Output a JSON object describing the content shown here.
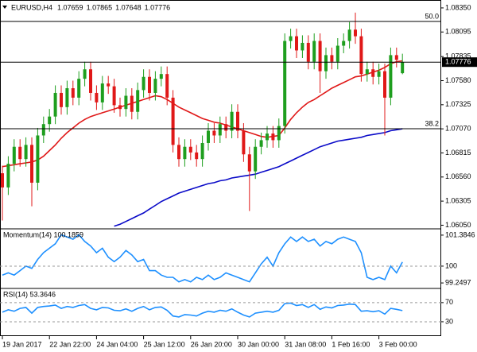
{
  "chart_data": [
    {
      "type": "candlestick",
      "title": "EURUSD,H4",
      "ohlc_last": {
        "open": 1.07659,
        "high": 1.07865,
        "low": 1.07648,
        "close": 1.07776
      },
      "categories": [
        "19 Jan 2017",
        null,
        null,
        null,
        null,
        null,
        null,
        null,
        "22 Jan 22:00",
        null,
        null,
        null,
        null,
        null,
        null,
        null,
        "24 Jan 04:00",
        null,
        null,
        null,
        null,
        null,
        null,
        null,
        "25 Jan 12:00",
        null,
        null,
        null,
        null,
        null,
        null,
        null,
        "26 Jan 20:00",
        null,
        null,
        null,
        null,
        null,
        null,
        null,
        "30 Jan 00:00",
        null,
        null,
        null,
        null,
        null,
        null,
        null,
        "31 Jan 08:00",
        null,
        null,
        null,
        null,
        null,
        null,
        null,
        "1 Feb 16:00",
        null,
        null,
        null,
        null,
        null,
        null,
        null,
        "3 Feb 00:00",
        null,
        null,
        null,
        null
      ],
      "open": [
        1.066,
        1.0645,
        1.067,
        1.0688,
        1.0675,
        1.069,
        1.065,
        1.07,
        1.0712,
        1.072,
        1.0745,
        1.073,
        1.075,
        1.074,
        1.076,
        1.077,
        1.0745,
        1.0735,
        1.0755,
        1.0752,
        1.0732,
        1.0728,
        1.0742,
        1.0725,
        1.0748,
        1.0762,
        1.0745,
        1.076,
        1.0765,
        1.074,
        1.069,
        1.0675,
        1.0688,
        1.0682,
        1.0675,
        1.0692,
        1.0705,
        1.07,
        1.0712,
        1.0705,
        1.0725,
        1.0705,
        1.068,
        1.0662,
        1.0688,
        1.0695,
        1.0702,
        1.0695,
        1.071,
        1.08,
        1.0805,
        1.079,
        1.0798,
        1.0778,
        1.08,
        1.0768,
        1.0785,
        1.0778,
        1.0795,
        1.08,
        1.0812,
        1.0805,
        1.0765,
        1.077,
        1.0762,
        1.0768,
        1.074,
        1.0785,
        1.07659
      ],
      "high": [
        1.0668,
        1.0678,
        1.0696,
        1.0696,
        1.0698,
        1.0698,
        1.0708,
        1.072,
        1.0728,
        1.0753,
        1.0753,
        1.0758,
        1.0758,
        1.0768,
        1.0778,
        1.0778,
        1.0753,
        1.0763,
        1.0763,
        1.076,
        1.074,
        1.075,
        1.075,
        1.0756,
        1.077,
        1.077,
        1.0768,
        1.0773,
        1.0773,
        1.0748,
        1.0698,
        1.0696,
        1.0696,
        1.069,
        1.07,
        1.0713,
        1.0713,
        1.072,
        1.072,
        1.0733,
        1.0733,
        1.0713,
        1.0688,
        1.0696,
        1.0703,
        1.071,
        1.071,
        1.0718,
        1.0808,
        1.0813,
        1.0813,
        1.0806,
        1.0806,
        1.0808,
        1.0808,
        1.0793,
        1.0793,
        1.0803,
        1.0808,
        1.082,
        1.083,
        1.0813,
        1.0778,
        1.0778,
        1.0776,
        1.0776,
        1.0793,
        1.0793,
        1.07865
      ],
      "low": [
        1.061,
        1.0637,
        1.0662,
        1.0667,
        1.0667,
        1.0625,
        1.0642,
        1.0692,
        1.0704,
        1.0712,
        1.0722,
        1.0722,
        1.0732,
        1.0732,
        1.0752,
        1.0737,
        1.0727,
        1.0727,
        1.0744,
        1.0724,
        1.072,
        1.072,
        1.0717,
        1.0717,
        1.074,
        1.0737,
        1.0737,
        1.0752,
        1.0732,
        1.0682,
        1.0667,
        1.0667,
        1.0674,
        1.0667,
        1.0667,
        1.0684,
        1.0692,
        1.0692,
        1.0697,
        1.0697,
        1.0697,
        1.0672,
        1.062,
        1.0654,
        1.068,
        1.0687,
        1.0687,
        1.0687,
        1.0702,
        1.0792,
        1.0782,
        1.0782,
        1.077,
        1.077,
        1.0745,
        1.076,
        1.077,
        1.077,
        1.0787,
        1.0792,
        1.0797,
        1.0757,
        1.0757,
        1.0754,
        1.0754,
        1.07,
        1.0732,
        1.0772,
        1.07648
      ],
      "close": [
        1.0645,
        1.067,
        1.0688,
        1.0675,
        1.069,
        1.065,
        1.07,
        1.0712,
        1.072,
        1.0745,
        1.073,
        1.075,
        1.074,
        1.076,
        1.077,
        1.0745,
        1.0735,
        1.0755,
        1.0752,
        1.0732,
        1.0728,
        1.0742,
        1.0725,
        1.0748,
        1.0762,
        1.0745,
        1.076,
        1.0765,
        1.074,
        1.069,
        1.0675,
        1.0688,
        1.0682,
        1.0675,
        1.0692,
        1.0705,
        1.07,
        1.0712,
        1.0705,
        1.0725,
        1.0705,
        1.068,
        1.0662,
        1.0688,
        1.0695,
        1.0702,
        1.0695,
        1.071,
        1.08,
        1.0805,
        1.079,
        1.0798,
        1.0778,
        1.08,
        1.0768,
        1.0785,
        1.0778,
        1.0795,
        1.08,
        1.0812,
        1.0805,
        1.0765,
        1.077,
        1.0762,
        1.0768,
        1.074,
        1.0785,
        1.078,
        1.07776
      ],
      "up_color": "#1e9e1e",
      "down_color": "#e01818",
      "overlays": [
        {
          "color": "#e01818",
          "values": [
            1.0667,
            1.0668,
            1.0669,
            1.067,
            1.0671,
            1.0672,
            1.0674,
            1.0678,
            1.0684,
            1.069,
            1.0697,
            1.0703,
            1.0708,
            1.0713,
            1.0717,
            1.072,
            1.0722,
            1.0724,
            1.0726,
            1.0728,
            1.073,
            1.0732,
            1.0734,
            1.0736,
            1.0738,
            1.074,
            1.0742,
            1.0741,
            1.0738,
            1.0734,
            1.073,
            1.0727,
            1.0724,
            1.0721,
            1.0718,
            1.0716,
            1.0714,
            1.0713,
            1.0711,
            1.0709,
            1.0707,
            1.0705,
            1.0703,
            1.0701,
            1.0699,
            1.0698,
            1.0699,
            1.07,
            1.0708,
            1.0717,
            1.0724,
            1.073,
            1.0735,
            1.0738,
            1.0742,
            1.0746,
            1.075,
            1.0753,
            1.0756,
            1.0759,
            1.0762,
            1.0763,
            1.0765,
            1.0767,
            1.0769,
            1.0772,
            1.0776,
            1.0778,
            1.0779
          ]
        },
        {
          "color": "#0a0ac8",
          "values": [
            null,
            null,
            null,
            null,
            null,
            null,
            null,
            null,
            null,
            null,
            null,
            null,
            null,
            null,
            null,
            null,
            null,
            null,
            null,
            1.0604,
            1.0606,
            1.0609,
            1.0612,
            1.0615,
            1.0618,
            1.0622,
            1.0626,
            1.063,
            1.0633,
            1.0636,
            1.0639,
            1.0641,
            1.0643,
            1.0645,
            1.0647,
            1.0649,
            1.065,
            1.0652,
            1.0653,
            1.0655,
            1.0656,
            1.0657,
            1.0658,
            1.0659,
            1.0661,
            1.0663,
            1.0665,
            1.0667,
            1.067,
            1.0673,
            1.0676,
            1.0679,
            1.0682,
            1.0685,
            1.0688,
            1.069,
            1.0692,
            1.0694,
            1.0695,
            1.0696,
            1.0697,
            1.0698,
            1.07,
            1.0701,
            1.0702,
            1.0703,
            1.0705,
            1.0706,
            1.0707
          ]
        }
      ],
      "levels": [
        {
          "label": "50.0",
          "value": 1.08207
        },
        {
          "label": "38.2",
          "value": 1.07071
        }
      ],
      "ylim": [
        1.0602,
        1.084
      ],
      "yticks": [
        {
          "value": 1.0835,
          "label": "1.08350"
        },
        1.08095,
        1.07835,
        {
          "value": 1.0758,
          "label": "1.07580"
        },
        1.07325,
        {
          "value": 1.0707,
          "label": "1.07070"
        },
        1.06815,
        {
          "value": 1.0656,
          "label": "1.06560"
        },
        1.06305,
        {
          "value": 1.0605,
          "label": "1.06050"
        }
      ]
    },
    {
      "type": "line",
      "title": "Momentum(14) 100.1859",
      "color": "#1e90ff",
      "values": [
        99.6,
        99.7,
        99.6,
        99.8,
        100.0,
        99.9,
        100.3,
        100.6,
        100.8,
        101.0,
        101.4,
        101.3,
        101.2,
        101.4,
        101.1,
        100.9,
        100.6,
        100.8,
        100.4,
        100.2,
        100.4,
        100.7,
        100.5,
        100.2,
        100.3,
        99.8,
        99.8,
        99.6,
        99.5,
        99.5,
        99.3,
        99.4,
        99.3,
        99.5,
        99.4,
        99.6,
        99.4,
        99.5,
        99.7,
        99.6,
        99.5,
        99.4,
        99.3,
        99.7,
        100.1,
        100.4,
        100.0,
        100.6,
        101.0,
        101.3,
        101.1,
        101.3,
        101.1,
        101.2,
        100.9,
        101.1,
        101.0,
        101.2,
        101.3,
        101.2,
        101.1,
        100.6,
        99.5,
        99.4,
        99.5,
        99.4,
        100.0,
        99.7,
        100.1859
      ],
      "reference_lines": [
        100
      ],
      "ylim": [
        99.04,
        101.63
      ],
      "yticks": [
        101.3846,
        100,
        99.2497
      ]
    },
    {
      "type": "line",
      "title": "RSI(14) 53.3646",
      "color": "#1e90ff",
      "values": [
        50,
        55,
        52,
        58,
        60,
        48,
        60,
        62,
        63,
        65,
        58,
        62,
        60,
        64,
        66,
        58,
        55,
        60,
        59,
        54,
        53,
        57,
        52,
        58,
        62,
        55,
        60,
        61,
        54,
        42,
        40,
        45,
        44,
        42,
        48,
        52,
        50,
        54,
        52,
        57,
        50,
        44,
        40,
        48,
        50,
        52,
        50,
        54,
        68,
        69,
        64,
        66,
        60,
        66,
        56,
        61,
        59,
        64,
        65,
        67,
        66,
        52,
        53,
        51,
        53,
        46,
        58,
        56,
        53.3646
      ],
      "reference_lines": [
        70,
        30
      ],
      "ylim": [
        0,
        98
      ],
      "yticks": [
        70,
        30
      ]
    }
  ]
}
